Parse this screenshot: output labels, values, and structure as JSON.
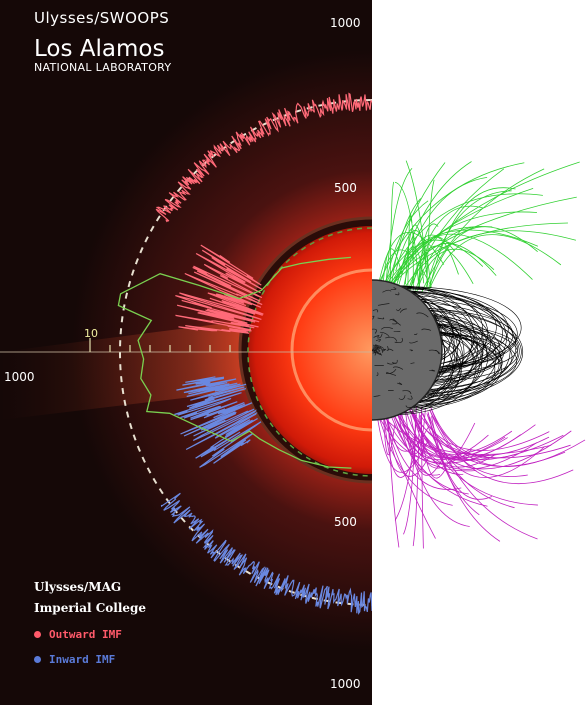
{
  "header": {
    "mission": "Ulysses/SWOOPS",
    "org_name": "Los Alamos",
    "org_sub": "NATIONAL LABORATORY"
  },
  "axis_labels": {
    "top_1000": "1000",
    "upper_500": "500",
    "left_1000": "1000",
    "inner_10": "10",
    "lower_500": "500",
    "bottom_1000": "1000"
  },
  "instrument": {
    "name": "Ulysses/MAG",
    "institution": "Imperial College"
  },
  "legend": [
    {
      "label": "Outward IMF",
      "color": "#ff5a6a"
    },
    {
      "label": "Inward  IMF",
      "color": "#5a7ad8"
    }
  ],
  "colors": {
    "background": "#150807",
    "sun_core": "#ff4a20",
    "outward_trace": "#ff6a78",
    "inward_trace": "#6a88e0",
    "density_trace": "#7ad050",
    "open_field_north": "#30d030",
    "open_field_south": "#c020c0",
    "closed_field": "#000000"
  }
}
